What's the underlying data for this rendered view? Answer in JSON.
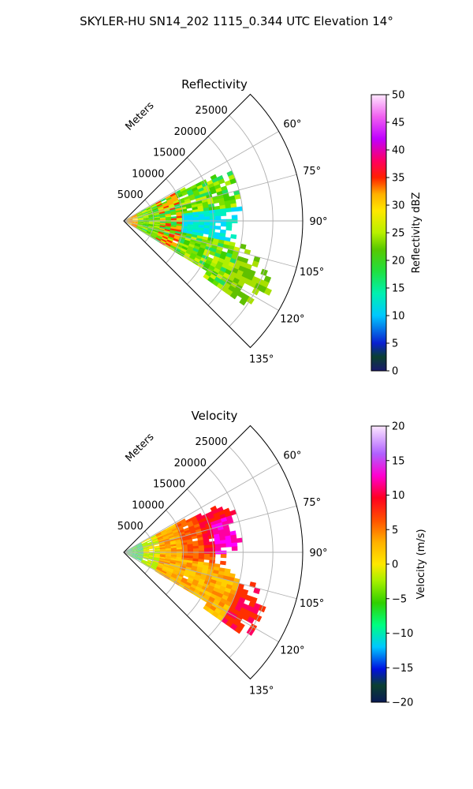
{
  "figure_title": "SKYLER-HU  SN14_202  1115_0.344 UTC Elevation 14°",
  "chart_data": [
    {
      "type": "polar-sector-radar",
      "title": "Reflectivity",
      "range_label": "Meters",
      "range_ticks": [
        5000,
        10000,
        15000,
        20000,
        25000
      ],
      "range_tick_labels": [
        "5000",
        "10000",
        "15000",
        "20000",
        "25000"
      ],
      "range_max": 30000,
      "azimuth_ticks": [
        60,
        75,
        90,
        105,
        120,
        135
      ],
      "azimuth_tick_labels": [
        "60°",
        "75°",
        "90°",
        "105°",
        "120°",
        "135°"
      ],
      "azimuth_range": [
        45,
        135
      ],
      "colorbar": {
        "label": "Reflectivity dBZ",
        "min": 0,
        "max": 50,
        "ticks": [
          0,
          5,
          10,
          15,
          20,
          25,
          30,
          35,
          40,
          45,
          50
        ],
        "tick_labels": [
          "0",
          "5",
          "10",
          "15",
          "20",
          "25",
          "30",
          "35",
          "40",
          "45",
          "50"
        ]
      },
      "colors": {
        "low": "#1e1e8f",
        "mid_low": "#00e0e0",
        "mid": "#5ecd00",
        "mid_high": "#ffe000",
        "high": "#ff0000",
        "top": "#fde0ff"
      }
    },
    {
      "type": "polar-sector-radar",
      "title": "Velocity",
      "range_label": "Meters",
      "range_ticks": [
        5000,
        10000,
        15000,
        20000,
        25000
      ],
      "range_tick_labels": [
        "5000",
        "10000",
        "15000",
        "20000",
        "25000"
      ],
      "range_max": 30000,
      "azimuth_ticks": [
        60,
        75,
        90,
        105,
        120,
        135
      ],
      "azimuth_tick_labels": [
        "60°",
        "75°",
        "90°",
        "105°",
        "120°",
        "135°"
      ],
      "azimuth_range": [
        45,
        135
      ],
      "colorbar": {
        "label": "Velocity (m/s)",
        "min": -20,
        "max": 20,
        "ticks": [
          -20,
          -15,
          -10,
          -5,
          0,
          5,
          10,
          15,
          20
        ],
        "tick_labels": [
          "−20",
          "−15",
          "−10",
          "−5",
          "0",
          "5",
          "10",
          "15",
          "20"
        ]
      },
      "colors": {
        "low": "#10205e",
        "mid_low": "#00e8ff",
        "mid": "#55d700",
        "zero": "#ffd800",
        "mid_high": "#ff2a00",
        "high": "#ff00ff",
        "top": "#fbe6ff"
      }
    }
  ]
}
